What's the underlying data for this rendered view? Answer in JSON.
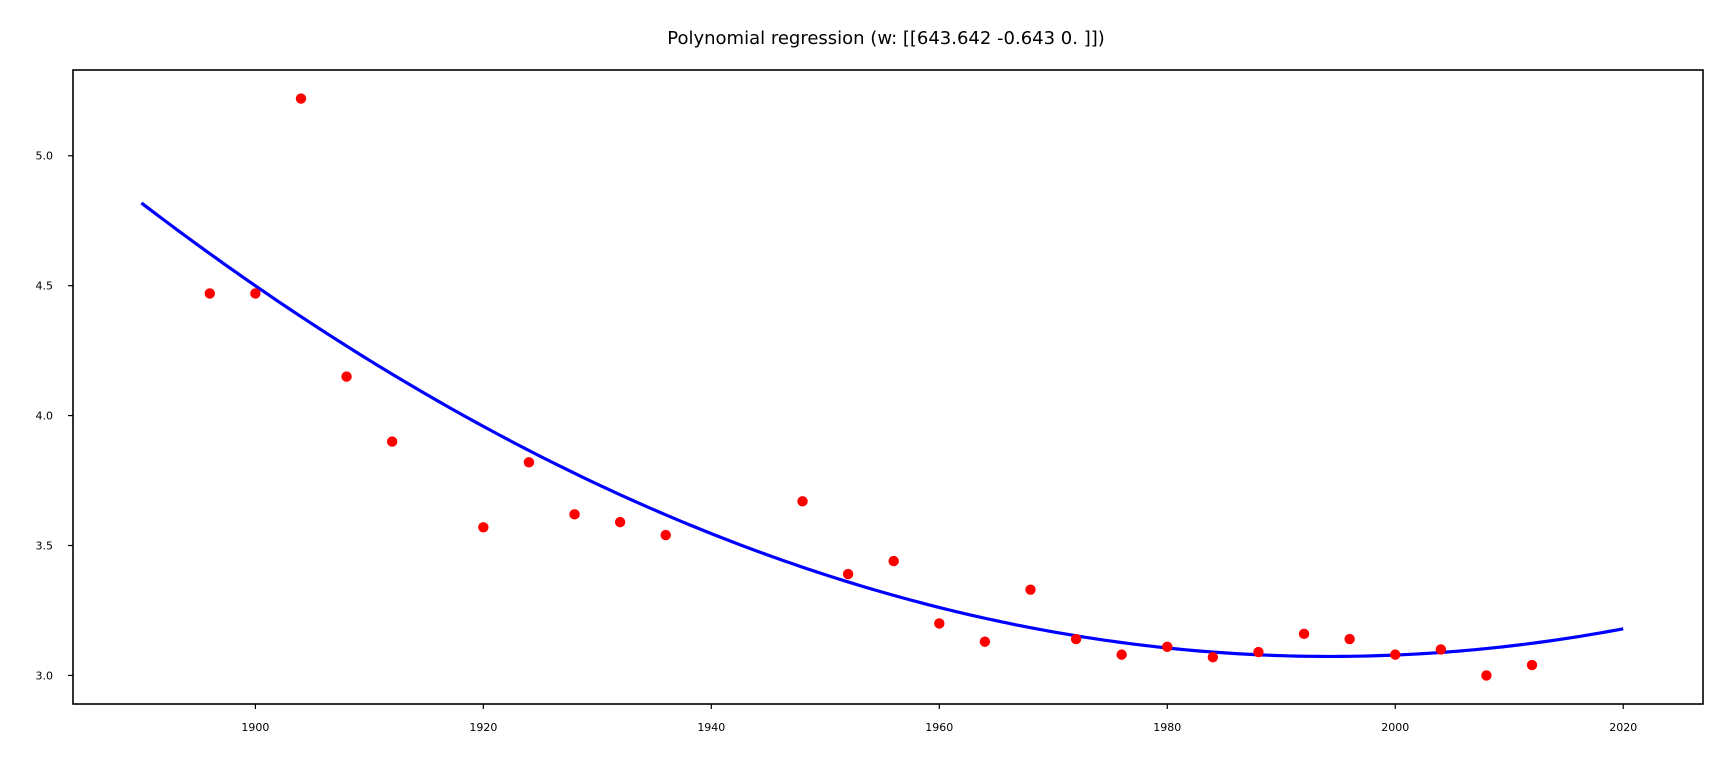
{
  "chart_data": {
    "type": "scatter",
    "title": "Polynomial regression (w: [[643.642  -0.643   0.   ]])",
    "xlabel": "",
    "ylabel": "",
    "xlim": [
      1884,
      2027
    ],
    "ylim": [
      2.89,
      5.33
    ],
    "grid": false,
    "xticks": [
      1900,
      1920,
      1940,
      1960,
      1980,
      2000,
      2020
    ],
    "yticks": [
      3.0,
      3.5,
      4.0,
      4.5,
      5.0
    ],
    "series": [
      {
        "type": "scatter",
        "color": "#ff0000",
        "x": [
          1896,
          1900,
          1904,
          1908,
          1912,
          1920,
          1924,
          1928,
          1932,
          1936,
          1948,
          1952,
          1956,
          1960,
          1964,
          1968,
          1972,
          1976,
          1980,
          1984,
          1988,
          1992,
          1996,
          2000,
          2004,
          2008,
          2012
        ],
        "y": [
          4.47,
          4.47,
          5.22,
          4.15,
          3.9,
          3.57,
          3.82,
          3.62,
          3.59,
          3.54,
          3.67,
          3.39,
          3.44,
          3.2,
          3.13,
          3.33,
          3.14,
          3.08,
          3.11,
          3.07,
          3.09,
          3.16,
          3.14,
          3.08,
          3.1,
          3.0,
          3.04
        ]
      },
      {
        "type": "line",
        "color": "#0000ff",
        "x": [
          1890,
          1900,
          1910,
          1920,
          1930,
          1940,
          1950,
          1960,
          1970,
          1980,
          1990,
          2000,
          2010,
          2020
        ],
        "y": [
          4.81,
          4.5,
          4.22,
          3.96,
          3.74,
          3.55,
          3.39,
          3.26,
          3.16,
          3.1,
          3.07,
          3.08,
          3.12,
          3.18
        ]
      }
    ]
  }
}
